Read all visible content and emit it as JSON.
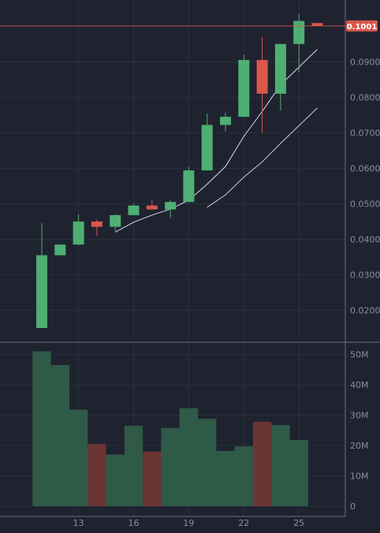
{
  "chart_data": {
    "type": "candlestick",
    "price_axis": {
      "ticks": [
        "0.0200",
        "0.0300",
        "0.0400",
        "0.0500",
        "0.0600",
        "0.0700",
        "0.0800",
        "0.0900"
      ],
      "tick_values": [
        0.02,
        0.03,
        0.04,
        0.05,
        0.06,
        0.07,
        0.08,
        0.09
      ],
      "range": [
        0.011,
        0.1074
      ]
    },
    "volume_axis": {
      "ticks": [
        "0",
        "10M",
        "20M",
        "30M",
        "40M",
        "50M"
      ],
      "tick_values": [
        0,
        10000000,
        20000000,
        30000000,
        40000000,
        50000000
      ],
      "range": [
        0,
        55000000
      ]
    },
    "date_axis": {
      "labels": [
        "13",
        "16",
        "19",
        "22",
        "25"
      ],
      "label_days": [
        13,
        16,
        19,
        22,
        25
      ]
    },
    "last_price": {
      "label": "0.1001",
      "value": 0.1001
    },
    "candles": [
      {
        "day": 11,
        "open": 0.015,
        "high": 0.0445,
        "low": 0.015,
        "close": 0.0355
      },
      {
        "day": 12,
        "open": 0.0355,
        "high": 0.0385,
        "low": 0.0355,
        "close": 0.0385
      },
      {
        "day": 13,
        "open": 0.0385,
        "high": 0.047,
        "low": 0.0383,
        "close": 0.045
      },
      {
        "day": 14,
        "open": 0.045,
        "high": 0.0455,
        "low": 0.041,
        "close": 0.0435
      },
      {
        "day": 15,
        "open": 0.0435,
        "high": 0.047,
        "low": 0.0422,
        "close": 0.0468
      },
      {
        "day": 16,
        "open": 0.0468,
        "high": 0.05,
        "low": 0.0468,
        "close": 0.0495
      },
      {
        "day": 17,
        "open": 0.0495,
        "high": 0.051,
        "low": 0.0484,
        "close": 0.0484
      },
      {
        "day": 18,
        "open": 0.0484,
        "high": 0.051,
        "low": 0.046,
        "close": 0.0505
      },
      {
        "day": 19,
        "open": 0.0505,
        "high": 0.0604,
        "low": 0.0505,
        "close": 0.0594
      },
      {
        "day": 20,
        "open": 0.0594,
        "high": 0.0754,
        "low": 0.0594,
        "close": 0.0722
      },
      {
        "day": 21,
        "open": 0.0722,
        "high": 0.0756,
        "low": 0.0704,
        "close": 0.0745
      },
      {
        "day": 22,
        "open": 0.0745,
        "high": 0.092,
        "low": 0.0745,
        "close": 0.0905
      },
      {
        "day": 23,
        "open": 0.0905,
        "high": 0.097,
        "low": 0.07,
        "close": 0.081
      },
      {
        "day": 24,
        "open": 0.081,
        "high": 0.095,
        "low": 0.0763,
        "close": 0.095
      },
      {
        "day": 25,
        "open": 0.095,
        "high": 0.1035,
        "low": 0.087,
        "close": 0.1015
      },
      {
        "day": 26,
        "open": 0.1009,
        "high": 0.1009,
        "low": 0.1001,
        "close": 0.1001
      }
    ],
    "volumes": [
      {
        "day": 11,
        "value": 51000000,
        "direction": "up"
      },
      {
        "day": 12,
        "value": 46500000,
        "direction": "up"
      },
      {
        "day": 13,
        "value": 31800000,
        "direction": "up"
      },
      {
        "day": 14,
        "value": 20500000,
        "direction": "down"
      },
      {
        "day": 15,
        "value": 17000000,
        "direction": "up"
      },
      {
        "day": 16,
        "value": 26500000,
        "direction": "up"
      },
      {
        "day": 17,
        "value": 18000000,
        "direction": "down"
      },
      {
        "day": 18,
        "value": 25800000,
        "direction": "up"
      },
      {
        "day": 19,
        "value": 32300000,
        "direction": "up"
      },
      {
        "day": 20,
        "value": 28800000,
        "direction": "up"
      },
      {
        "day": 21,
        "value": 18200000,
        "direction": "up"
      },
      {
        "day": 22,
        "value": 19700000,
        "direction": "up"
      },
      {
        "day": 23,
        "value": 27800000,
        "direction": "down"
      },
      {
        "day": 24,
        "value": 26700000,
        "direction": "up"
      },
      {
        "day": 25,
        "value": 21800000,
        "direction": "up"
      }
    ],
    "moving_averages": [
      {
        "color": "#d6dbe4",
        "points": [
          {
            "day": 15,
            "value": 0.042
          },
          {
            "day": 16,
            "value": 0.0448
          },
          {
            "day": 17,
            "value": 0.0468
          },
          {
            "day": 18,
            "value": 0.0485
          },
          {
            "day": 19,
            "value": 0.051
          },
          {
            "day": 20,
            "value": 0.0555
          },
          {
            "day": 21,
            "value": 0.0605
          },
          {
            "day": 22,
            "value": 0.069
          },
          {
            "day": 23,
            "value": 0.076
          },
          {
            "day": 24,
            "value": 0.0835
          },
          {
            "day": 25,
            "value": 0.0885
          },
          {
            "day": 26,
            "value": 0.0935
          }
        ]
      },
      {
        "color": "#c9ced8",
        "points": [
          {
            "day": 20,
            "value": 0.049
          },
          {
            "day": 21,
            "value": 0.0525
          },
          {
            "day": 22,
            "value": 0.0575
          },
          {
            "day": 23,
            "value": 0.0618
          },
          {
            "day": 24,
            "value": 0.067
          },
          {
            "day": 25,
            "value": 0.072
          },
          {
            "day": 26,
            "value": 0.077
          }
        ]
      }
    ],
    "grid": true
  },
  "colors": {
    "background": "#1f2330",
    "grid": "#2a2f3d",
    "up": "#4faf72",
    "down": "#d9584a",
    "volume_up": "#2f5a48",
    "volume_down": "#6b3534",
    "price_line": "#d9584a",
    "axis_text": "#8a8f9c",
    "separator": "#6a6f7c"
  }
}
